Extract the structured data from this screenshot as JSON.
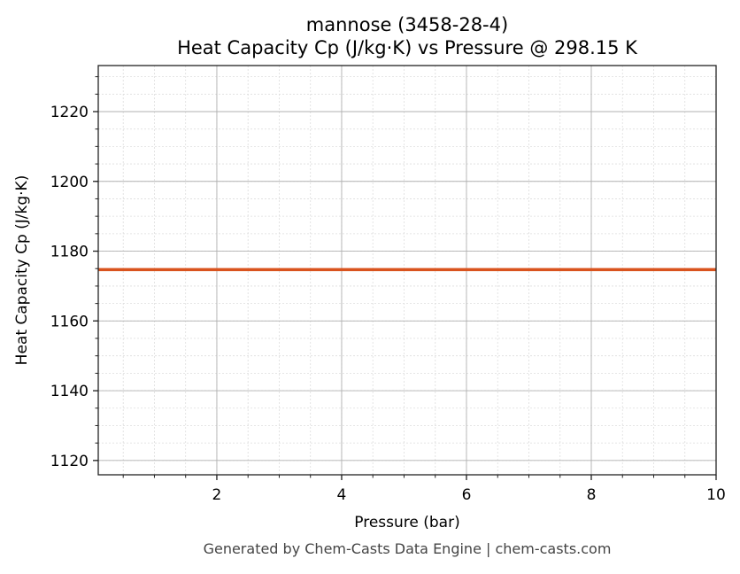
{
  "chart_data": {
    "type": "line",
    "title_line1": "mannose (3458-28-4)",
    "title_line2": "Heat Capacity Cp (J/kg·K) vs Pressure @ 298.15 K",
    "xlabel": "Pressure (bar)",
    "ylabel": "Heat Capacity Cp (J/kg·K)",
    "xlim": [
      0.1,
      10
    ],
    "ylim": [
      1115.9,
      1233.2
    ],
    "xticks": [
      2,
      4,
      6,
      8,
      10
    ],
    "xtick_labels": [
      "2",
      "4",
      "6",
      "8",
      "10"
    ],
    "x_minor_step": 0.5,
    "yticks": [
      1120,
      1140,
      1160,
      1180,
      1200,
      1220
    ],
    "ytick_labels": [
      "1120",
      "1140",
      "1160",
      "1180",
      "1200",
      "1220"
    ],
    "y_minor_step": 5,
    "grid": true,
    "series": [
      {
        "x": [
          0.1,
          10
        ],
        "y": [
          1174.7,
          1174.7
        ],
        "color": "#d9531e"
      }
    ]
  },
  "footer": "Generated by Chem-Casts Data Engine | chem-casts.com"
}
